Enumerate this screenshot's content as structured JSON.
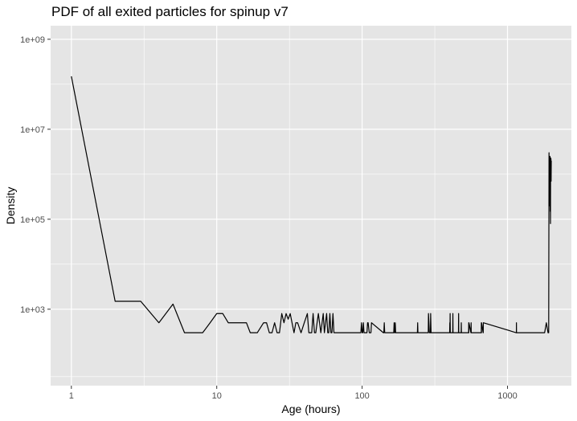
{
  "chart_data": {
    "type": "line",
    "title": "PDF of all exited particles for spinup v7",
    "xlabel": "Age (hours)",
    "ylabel": "Density",
    "x_scale": "log10",
    "y_scale": "log10",
    "xlim": [
      0.72,
      2750
    ],
    "ylim": [
      20,
      2000000000
    ],
    "x_ticks": [
      1,
      10,
      100,
      1000
    ],
    "x_tick_labels": [
      "1",
      "10",
      "100",
      "1000"
    ],
    "y_ticks": [
      1000,
      100000,
      10000000,
      1000000000
    ],
    "y_tick_labels": [
      "1e+03",
      "1e+05",
      "1e+07",
      "1e+09"
    ],
    "grid": true,
    "colors": {
      "panel": "#e5e5e5",
      "grid": "#ffffff",
      "line": "#000000",
      "ticks": "#333333"
    },
    "series": [
      {
        "x": [
          1,
          2,
          3,
          4,
          5,
          6,
          7,
          8,
          9,
          10,
          11,
          12,
          13,
          14,
          15,
          16,
          17,
          19,
          21,
          22,
          23,
          24,
          25,
          26,
          27,
          28,
          29,
          30,
          31,
          32,
          34,
          35,
          36,
          38,
          40,
          42,
          43,
          44,
          45,
          46,
          47,
          48,
          49,
          50,
          52,
          54,
          55,
          56,
          57,
          58,
          59,
          60,
          61,
          62,
          63,
          64,
          98,
          99,
          100,
          101,
          102,
          103,
          108,
          109,
          110,
          112,
          115,
          116,
          140,
          141,
          142,
          143,
          165,
          166,
          167,
          168,
          169,
          170,
          240,
          241,
          242,
          243,
          285,
          286,
          290,
          292,
          295,
          296,
          298,
          300,
          305,
          400,
          401,
          402,
          403,
          404,
          420,
          421,
          422,
          423,
          460,
          461,
          462,
          463,
          480,
          481,
          482,
          483,
          500,
          540,
          541,
          542,
          543,
          560,
          561,
          562,
          563,
          660,
          661,
          662,
          663,
          680,
          681,
          682,
          1150,
          1151,
          1152,
          1153,
          1600,
          1700,
          1800,
          1850,
          1900,
          1920,
          1930,
          1940,
          1950,
          1955,
          1960,
          1965,
          1970,
          1975,
          1980,
          1985,
          1990,
          1995,
          2000
        ],
        "y": [
          150000000,
          1500,
          1500,
          500,
          1300,
          300,
          300,
          300,
          500,
          800,
          800,
          500,
          500,
          500,
          500,
          500,
          300,
          300,
          500,
          500,
          300,
          300,
          500,
          300,
          300,
          800,
          500,
          800,
          600,
          800,
          300,
          500,
          500,
          300,
          500,
          800,
          300,
          300,
          300,
          800,
          300,
          300,
          500,
          800,
          300,
          800,
          300,
          500,
          800,
          300,
          300,
          800,
          300,
          300,
          800,
          300,
          300,
          500,
          300,
          300,
          500,
          300,
          300,
          500,
          500,
          300,
          300,
          500,
          300,
          300,
          500,
          300,
          300,
          500,
          300,
          300,
          500,
          300,
          300,
          500,
          300,
          300,
          300,
          800,
          300,
          300,
          300,
          800,
          300,
          300,
          300,
          300,
          500,
          300,
          800,
          300,
          300,
          800,
          300,
          300,
          300,
          800,
          300,
          300,
          300,
          500,
          300,
          300,
          300,
          300,
          500,
          300,
          500,
          300,
          300,
          500,
          300,
          300,
          500,
          300,
          500,
          300,
          300,
          500,
          300,
          300,
          500,
          300,
          300,
          300,
          300,
          500,
          300,
          300,
          3000000,
          200000,
          2000000,
          300000,
          2500000,
          150000,
          2000000,
          80000,
          2300000,
          1000000,
          2200000,
          700000,
          2000000
        ]
      }
    ]
  }
}
